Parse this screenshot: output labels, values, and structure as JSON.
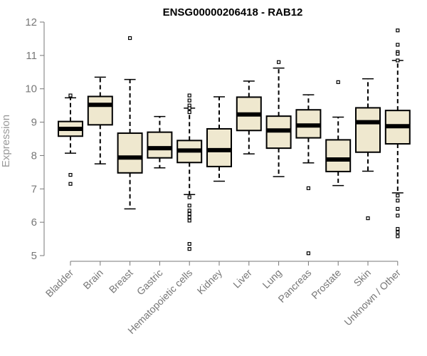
{
  "chart_data": {
    "type": "boxplot",
    "title": "ENSG00000206418 - RAB12",
    "xlabel": "",
    "ylabel": "Expression",
    "ylim": [
      5,
      12
    ],
    "yticks": [
      5,
      6,
      7,
      8,
      9,
      10,
      11,
      12
    ],
    "grid": false,
    "box_color": "#efe8cf",
    "categories": [
      "Bladder",
      "Brain",
      "Breast",
      "Gastric",
      "Hematopoietic cells",
      "Kidney",
      "Liver",
      "Lung",
      "Pancreas",
      "Prostate",
      "Skin",
      "Unknown / Other"
    ],
    "boxes": [
      {
        "min": 8.07,
        "q1": 8.58,
        "median": 8.8,
        "q3": 9.02,
        "max": 9.73,
        "outliers": [
          9.8,
          7.42,
          7.15
        ]
      },
      {
        "min": 7.75,
        "q1": 8.92,
        "median": 9.52,
        "q3": 9.77,
        "max": 10.35,
        "outliers": []
      },
      {
        "min": 6.4,
        "q1": 7.48,
        "median": 7.94,
        "q3": 8.67,
        "max": 10.28,
        "outliers": [
          11.52
        ]
      },
      {
        "min": 7.63,
        "q1": 7.93,
        "median": 8.22,
        "q3": 8.7,
        "max": 9.17,
        "outliers": []
      },
      {
        "min": 6.83,
        "q1": 7.79,
        "median": 8.15,
        "q3": 8.45,
        "max": 9.42,
        "outliers": [
          9.8,
          9.65,
          9.5,
          9.42,
          9.3,
          6.75,
          6.5,
          6.35,
          6.25,
          6.15,
          6.05,
          5.35,
          5.2
        ]
      },
      {
        "min": 7.23,
        "q1": 7.67,
        "median": 8.16,
        "q3": 8.8,
        "max": 9.76,
        "outliers": []
      },
      {
        "min": 8.05,
        "q1": 8.75,
        "median": 9.23,
        "q3": 9.75,
        "max": 10.23,
        "outliers": []
      },
      {
        "min": 7.37,
        "q1": 8.22,
        "median": 8.75,
        "q3": 9.18,
        "max": 10.62,
        "outliers": [
          10.8
        ]
      },
      {
        "min": 7.78,
        "q1": 8.53,
        "median": 8.9,
        "q3": 9.37,
        "max": 9.82,
        "outliers": [
          7.02,
          5.07
        ]
      },
      {
        "min": 7.1,
        "q1": 7.52,
        "median": 7.88,
        "q3": 8.47,
        "max": 9.15,
        "outliers": [
          10.2
        ]
      },
      {
        "min": 7.53,
        "q1": 8.1,
        "median": 9.0,
        "q3": 9.43,
        "max": 10.3,
        "outliers": [
          6.12
        ]
      },
      {
        "min": 6.88,
        "q1": 8.35,
        "median": 8.88,
        "q3": 9.35,
        "max": 10.85,
        "outliers": [
          11.75,
          11.32,
          11.1,
          11.05,
          10.85,
          6.8,
          6.65,
          6.4,
          6.2,
          5.8,
          5.7,
          5.58
        ]
      }
    ]
  }
}
